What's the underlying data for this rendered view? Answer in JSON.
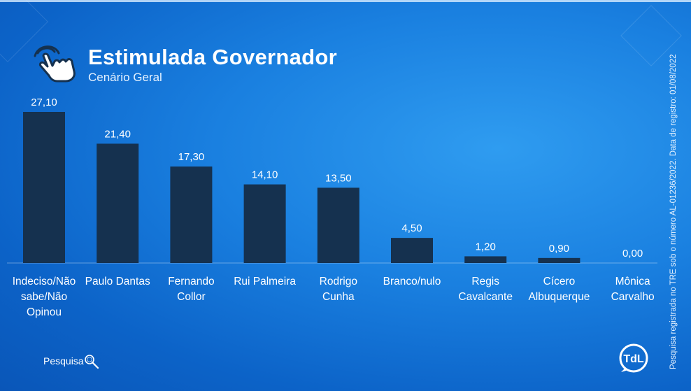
{
  "header": {
    "title": "Estimulada Governador",
    "subtitle": "Cenário Geral"
  },
  "footer": {
    "search_label": "Pesquisa",
    "side_note": "Pesquisa registrada no TRE sob o número AL-01236/2022. Data de registro: 01/08/2022"
  },
  "icons": {
    "header": "tap-hand-icon",
    "footer": "magnifier-icon",
    "logo": "tdl-logo"
  },
  "colors": {
    "bar": "#15314f",
    "background": "#1a80e0"
  },
  "chart_data": {
    "type": "bar",
    "title": "Estimulada Governador",
    "subtitle": "Cenário Geral",
    "categories": [
      "Indeciso/Não sabe/Não Opinou",
      "Paulo Dantas",
      "Fernando Collor",
      "Rui Palmeira",
      "Rodrigo Cunha",
      "Branco/nulo",
      "Regis Cavalcante",
      "Cícero Albuquerque",
      "Mônica Carvalho"
    ],
    "category_lines": [
      [
        "Indeciso/Não",
        "sabe/Não",
        "Opinou"
      ],
      [
        "Paulo Dantas"
      ],
      [
        "Fernando",
        "Collor"
      ],
      [
        "Rui Palmeira"
      ],
      [
        "Rodrigo",
        "Cunha"
      ],
      [
        "Branco/nulo"
      ],
      [
        "Regis",
        "Cavalcante"
      ],
      [
        "Cícero",
        "Albuquerque"
      ],
      [
        "Mônica",
        "Carvalho"
      ]
    ],
    "values": [
      27.1,
      21.4,
      17.3,
      14.1,
      13.5,
      4.5,
      1.2,
      0.9,
      0.0
    ],
    "value_labels": [
      "27,10",
      "21,40",
      "17,30",
      "14,10",
      "13,50",
      "4,50",
      "1,20",
      "0,90",
      "0,00"
    ],
    "xlabel": "",
    "ylabel": "",
    "grid": false,
    "legend": "none"
  }
}
